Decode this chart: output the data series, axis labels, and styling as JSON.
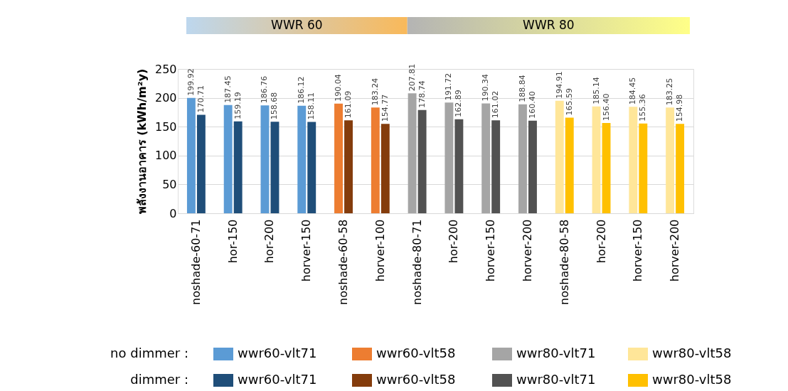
{
  "chart_data": {
    "type": "bar",
    "ylabel": "พลังงานอาคาร (kWh/m²y)",
    "categories": [
      "noshade-60-71",
      "hor-150",
      "hor-200",
      "horver-150",
      "noshade-60-58",
      "horver-100",
      "noshade-80-71",
      "hor-200",
      "horver-150",
      "horver-200",
      "noshade-80-58",
      "hor-200",
      "horver-150",
      "horver-200"
    ],
    "series": [
      {
        "name": "wwr60-vlt71",
        "color": "#5b9bd5",
        "values": [
          199.92,
          187.45,
          186.76,
          186.12,
          null,
          null,
          null,
          null,
          null,
          null,
          null,
          null,
          null,
          null
        ]
      },
      {
        "name": "wwr60-vlt71",
        "color": "#1f4e79",
        "values": [
          170.71,
          159.19,
          158.68,
          158.11,
          null,
          null,
          null,
          null,
          null,
          null,
          null,
          null,
          null,
          null
        ]
      },
      {
        "name": "wwr60-vlt58",
        "color": "#ed7d31",
        "values": [
          null,
          null,
          null,
          null,
          190.04,
          183.24,
          null,
          null,
          null,
          null,
          null,
          null,
          null,
          null
        ]
      },
      {
        "name": "wwr60-vlt58",
        "color": "#843c0c",
        "values": [
          null,
          null,
          null,
          null,
          161.09,
          154.77,
          null,
          null,
          null,
          null,
          null,
          null,
          null,
          null
        ]
      },
      {
        "name": "wwr80-vlt71",
        "color": "#a5a5a5",
        "values": [
          null,
          null,
          null,
          null,
          null,
          null,
          207.81,
          191.72,
          190.34,
          188.84,
          null,
          null,
          null,
          null
        ]
      },
      {
        "name": "wwr80-vlt71",
        "color": "#525252",
        "values": [
          null,
          null,
          null,
          null,
          null,
          null,
          178.74,
          162.89,
          161.02,
          160.4,
          null,
          null,
          null,
          null
        ],
        "value_labels": [
          null,
          null,
          null,
          null,
          null,
          null,
          "178.74",
          "162.89",
          "161.02",
          "160.40",
          null,
          null,
          null,
          null
        ]
      },
      {
        "name": "wwr80-vlt58",
        "color": "#ffe699",
        "values": [
          null,
          null,
          null,
          null,
          null,
          null,
          null,
          null,
          null,
          null,
          194.91,
          185.14,
          184.45,
          183.25
        ]
      },
      {
        "name": "wwr80-vlt58",
        "color": "#ffc000",
        "values": [
          null,
          null,
          null,
          null,
          null,
          null,
          null,
          null,
          null,
          null,
          165.59,
          156.4,
          155.36,
          154.98
        ],
        "value_labels": [
          null,
          null,
          null,
          null,
          null,
          null,
          null,
          null,
          null,
          null,
          "165.59",
          "156.40",
          "155.36",
          "154.98"
        ]
      }
    ],
    "annotations": [
      "WWR 60",
      "WWR 80",
      "no dimmer :",
      "dimmer :"
    ],
    "ylim": [
      0,
      250
    ],
    "yticks": [
      0,
      50,
      100,
      150,
      200,
      250
    ],
    "grid": "y",
    "data_labels": true,
    "legend": "bottom"
  }
}
